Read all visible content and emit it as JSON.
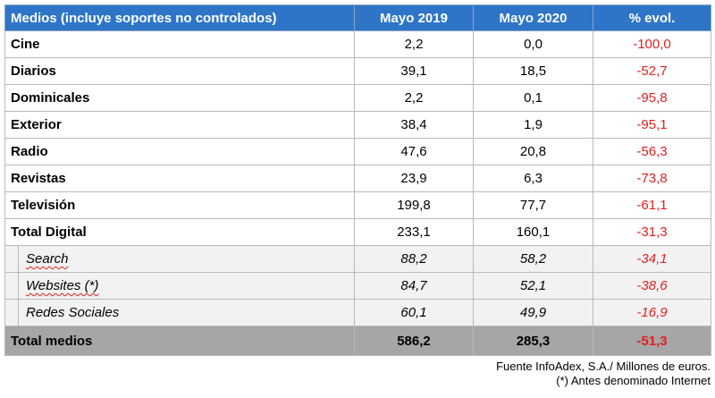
{
  "table": {
    "headers": [
      "Medios (incluye soportes no controlados)",
      "Mayo 2019",
      "Mayo 2020",
      "% evol."
    ],
    "rows": [
      {
        "name": "Cine",
        "v2019": "2,2",
        "v2020": "0,0",
        "evol": "-100,0"
      },
      {
        "name": "Diarios",
        "v2019": "39,1",
        "v2020": "18,5",
        "evol": "-52,7"
      },
      {
        "name": "Dominicales",
        "v2019": "2,2",
        "v2020": "0,1",
        "evol": "-95,8"
      },
      {
        "name": "Exterior",
        "v2019": "38,4",
        "v2020": "1,9",
        "evol": "-95,1"
      },
      {
        "name": "Radio",
        "v2019": "47,6",
        "v2020": "20,8",
        "evol": "-56,3"
      },
      {
        "name": "Revistas",
        "v2019": "23,9",
        "v2020": "6,3",
        "evol": "-73,8"
      },
      {
        "name": "Televisión",
        "v2019": "199,8",
        "v2020": "77,7",
        "evol": "-61,1"
      },
      {
        "name": "Total Digital",
        "v2019": "233,1",
        "v2020": "160,1",
        "evol": "-31,3"
      }
    ],
    "subrows": [
      {
        "name": "Search",
        "v2019": "88,2",
        "v2020": "58,2",
        "evol": "-34,1"
      },
      {
        "name": "Websites (*)",
        "v2019": "84,7",
        "v2020": "52,1",
        "evol": "-38,6"
      },
      {
        "name": "Redes Sociales",
        "v2019": "60,1",
        "v2020": "49,9",
        "evol": "-16,9"
      }
    ],
    "total": {
      "name": "Total medios",
      "v2019": "586,2",
      "v2020": "285,3",
      "evol": "-51,3"
    }
  },
  "footer": {
    "source": "Fuente InfoAdex, S.A./ Millones de euros.",
    "note": "(*) Antes denominado Internet"
  },
  "colors": {
    "header_bg": "#2e75c8",
    "negative": "#e02020",
    "total_bg": "#a6a6a6",
    "subrow_bg": "#f2f2f2"
  }
}
